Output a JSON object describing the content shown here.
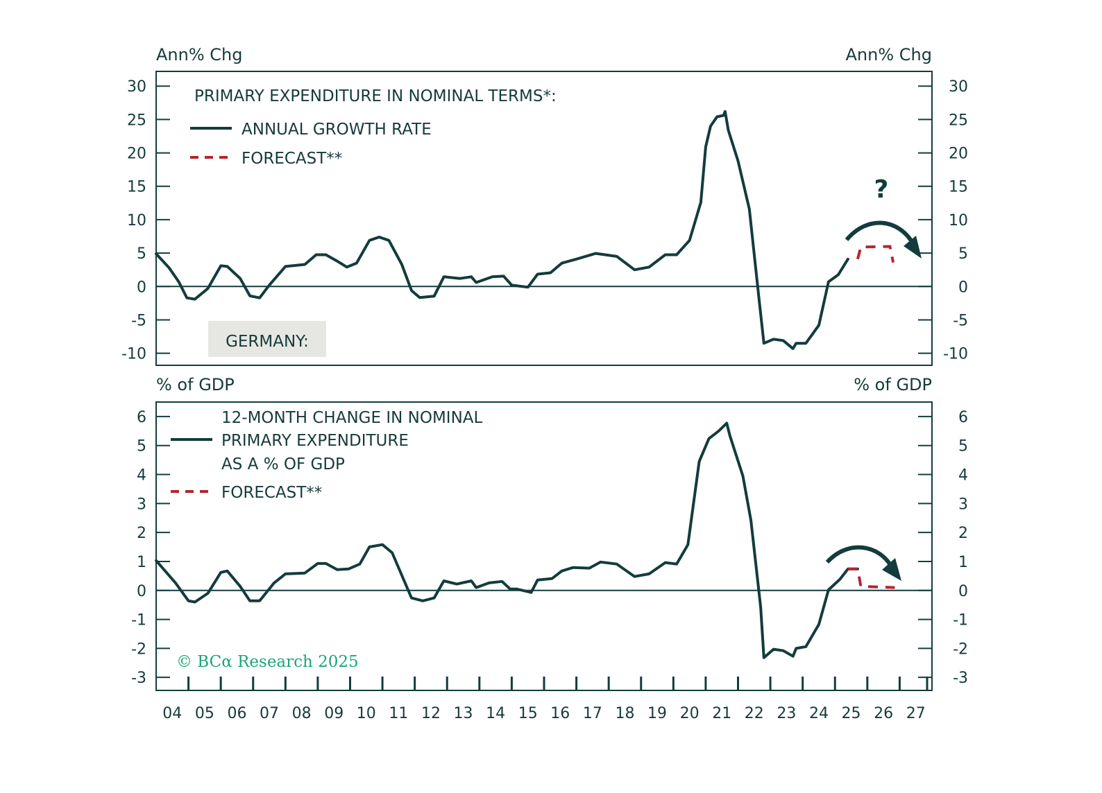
{
  "colors": {
    "series": "#133c3c",
    "forecast": "#b5252f",
    "axis": "#133c3c",
    "badge_bg": "#e6e7e3",
    "watermark": "#1aa57a"
  },
  "badge": {
    "label": "GERMANY:"
  },
  "annotation": {
    "question_mark": "?"
  },
  "watermark": {
    "text": "© BCα Research 2025"
  },
  "chart_data": [
    {
      "type": "line",
      "title": "PRIMARY EXPENDITURE IN NOMINAL TERMS*:",
      "ylabel_left": "Ann% Chg",
      "ylabel_right": "Ann% Chg",
      "xlim": [
        2004,
        2028
      ],
      "ylim": [
        -11.8,
        32.2
      ],
      "yticks": [
        30,
        25,
        20,
        15,
        10,
        5,
        0,
        -5,
        -10
      ],
      "ytick_labels": [
        "30",
        "25",
        "20",
        "15",
        "10",
        "5",
        "0",
        "-5",
        "-10"
      ],
      "grid": false,
      "zero_line": true,
      "legend_position": "top-left",
      "legend": [
        {
          "label": "ANNUAL GROWTH RATE",
          "style": "solid"
        },
        {
          "label": "FORECAST**",
          "style": "dashed"
        }
      ],
      "series": [
        {
          "name": "ANNUAL GROWTH RATE",
          "style": "solid",
          "x": [
            2004.0,
            2004.4,
            2004.7,
            2004.95,
            2005.2,
            2005.6,
            2006.0,
            2006.2,
            2006.6,
            2006.9,
            2007.2,
            2007.5,
            2008.0,
            2008.6,
            2008.95,
            2009.25,
            2009.6,
            2009.9,
            2010.2,
            2010.6,
            2010.9,
            2011.2,
            2011.6,
            2011.9,
            2012.15,
            2012.6,
            2012.9,
            2013.4,
            2013.75,
            2013.9,
            2014.4,
            2014.75,
            2015.0,
            2015.5,
            2015.8,
            2016.2,
            2016.55,
            2017.0,
            2017.6,
            2018.25,
            2018.8,
            2019.25,
            2019.75,
            2020.1,
            2020.5,
            2020.85,
            2021.0,
            2021.15,
            2021.35,
            2021.55,
            2021.6,
            2021.7,
            2022.0,
            2022.35,
            2022.65,
            2022.8,
            2023.1,
            2023.4,
            2023.7,
            2023.8,
            2024.1,
            2024.5,
            2024.8,
            2025.1,
            2025.4
          ],
          "values": [
            4.9,
            2.8,
            0.7,
            -1.7,
            -1.9,
            -0.3,
            3.1,
            3.0,
            1.2,
            -1.4,
            -1.7,
            0.2,
            3.0,
            3.3,
            4.75,
            4.75,
            3.8,
            2.9,
            3.5,
            6.9,
            7.4,
            6.9,
            3.3,
            -0.6,
            -1.65,
            -1.45,
            1.45,
            1.2,
            1.45,
            0.6,
            1.45,
            1.55,
            0.2,
            -0.1,
            1.85,
            2.05,
            3.5,
            4.1,
            4.95,
            4.5,
            2.5,
            2.9,
            4.75,
            4.75,
            6.9,
            12.6,
            20.9,
            24.0,
            25.4,
            25.6,
            26.2,
            23.4,
            18.8,
            11.6,
            -1.9,
            -8.5,
            -7.9,
            -8.1,
            -9.3,
            -8.5,
            -8.5,
            -5.8,
            0.7,
            1.75,
            4.1
          ]
        },
        {
          "name": "FORECAST**",
          "style": "dashed",
          "x": [
            2025.7,
            2025.8,
            2026.7,
            2026.8
          ],
          "values": [
            4.1,
            5.9,
            6.0,
            3.6
          ]
        }
      ],
      "annotations": [
        "curved arrow over forecast",
        "?"
      ]
    },
    {
      "type": "line",
      "title": "12-MONTH CHANGE IN NOMINAL PRIMARY EXPENDITURE AS A % OF GDP",
      "title_lines": [
        "12-MONTH CHANGE IN NOMINAL",
        "PRIMARY EXPENDITURE",
        "AS A % OF GDP"
      ],
      "ylabel_left": "% of GDP",
      "ylabel_right": "% of GDP",
      "xlim": [
        2004,
        2028
      ],
      "ylim": [
        -3.45,
        6.5
      ],
      "yticks": [
        6,
        5,
        4,
        3,
        2,
        1,
        0,
        -1,
        -2,
        -3
      ],
      "ytick_labels": [
        "6",
        "5",
        "4",
        "3",
        "2",
        "1",
        "0",
        "-1",
        "-2",
        "-3"
      ],
      "xtick_labels": [
        "04",
        "05",
        "06",
        "07",
        "08",
        "09",
        "10",
        "11",
        "12",
        "13",
        "14",
        "15",
        "16",
        "17",
        "18",
        "19",
        "20",
        "21",
        "22",
        "23",
        "24",
        "25",
        "26",
        "27"
      ],
      "grid": false,
      "zero_line": true,
      "legend_position": "top-left",
      "legend": [
        {
          "label": "12-MONTH CHANGE IN NOMINAL PRIMARY EXPENDITURE AS A % OF GDP",
          "style": "solid"
        },
        {
          "label": "FORECAST**",
          "style": "dashed"
        }
      ],
      "series": [
        {
          "name": "12-MONTH CHANGE IN NOMINAL PRIMARY EXPENDITURE AS A % OF GDP",
          "style": "solid",
          "x": [
            2004.0,
            2004.6,
            2005.0,
            2005.2,
            2005.6,
            2006.0,
            2006.2,
            2006.6,
            2006.9,
            2007.2,
            2007.65,
            2008.0,
            2008.6,
            2009.0,
            2009.25,
            2009.6,
            2009.95,
            2010.3,
            2010.6,
            2011.0,
            2011.3,
            2011.9,
            2012.25,
            2012.6,
            2012.9,
            2013.3,
            2013.75,
            2013.9,
            2014.3,
            2014.7,
            2014.95,
            2015.15,
            2015.6,
            2015.8,
            2016.25,
            2016.55,
            2016.9,
            2017.4,
            2017.75,
            2018.25,
            2018.8,
            2019.25,
            2019.75,
            2020.1,
            2020.45,
            2020.8,
            2021.1,
            2021.4,
            2021.65,
            2021.75,
            2022.15,
            2022.4,
            2022.7,
            2022.8,
            2023.1,
            2023.4,
            2023.7,
            2023.8,
            2024.1,
            2024.5,
            2024.8,
            2025.15,
            2025.4,
            2025.7
          ],
          "values": [
            1.03,
            0.26,
            -0.36,
            -0.4,
            -0.1,
            0.62,
            0.67,
            0.14,
            -0.36,
            -0.36,
            0.26,
            0.57,
            0.6,
            0.93,
            0.93,
            0.72,
            0.74,
            0.91,
            1.5,
            1.58,
            1.3,
            -0.26,
            -0.36,
            -0.26,
            0.33,
            0.22,
            0.33,
            0.1,
            0.26,
            0.31,
            0.05,
            0.05,
            -0.07,
            0.36,
            0.41,
            0.67,
            0.79,
            0.77,
            0.98,
            0.91,
            0.48,
            0.57,
            0.96,
            0.91,
            1.58,
            4.45,
            5.24,
            5.5,
            5.77,
            5.33,
            3.95,
            2.42,
            -0.57,
            -2.32,
            -2.03,
            -2.08,
            -2.27,
            -2.0,
            -1.94,
            -1.17,
            0.02,
            0.38,
            0.74,
            0.74
          ]
        },
        {
          "name": "FORECAST**",
          "style": "dashed",
          "x": [
            2025.4,
            2025.7,
            2025.8,
            2026.85
          ],
          "values": [
            0.74,
            0.74,
            0.14,
            0.1
          ]
        }
      ],
      "annotations": [
        "curved arrow over forecast"
      ]
    }
  ]
}
